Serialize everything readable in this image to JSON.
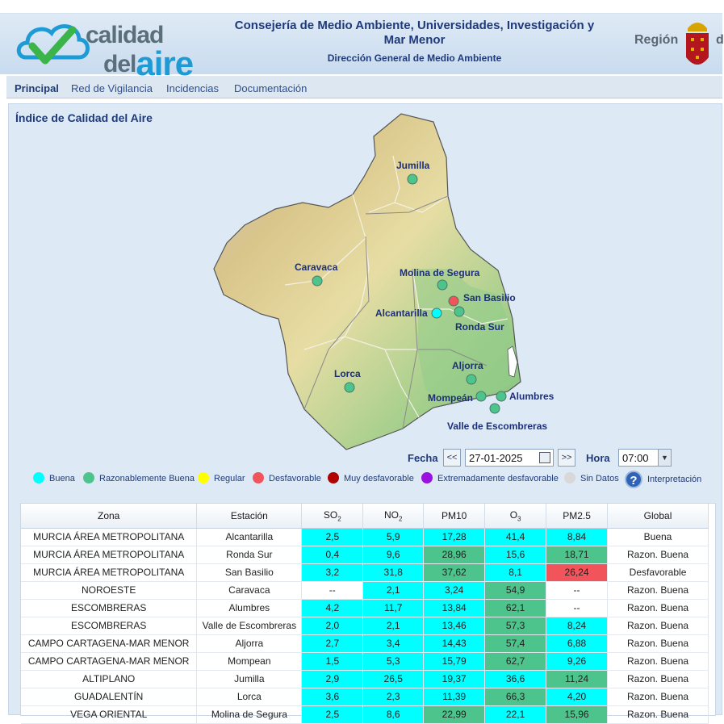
{
  "header": {
    "logo_line1": "calidad",
    "logo_line2_small": "del",
    "logo_line2_big": "aire",
    "title": "Consejería de Medio Ambiente, Universidades, Investigación y Mar Menor",
    "subtitle": "Dirección General de Medio Ambiente",
    "region_label": "Región",
    "region_cut": "d"
  },
  "nav": {
    "items": [
      {
        "label": "Principal",
        "active": true
      },
      {
        "label": "Red de Vigilancia",
        "active": false
      },
      {
        "label": "Incidencias",
        "active": false
      },
      {
        "label": "Documentación",
        "active": false
      }
    ]
  },
  "main": {
    "title": "Índice de Calidad del Aire",
    "stations": [
      {
        "name": "Jumilla",
        "status": "razon"
      },
      {
        "name": "Caravaca",
        "status": "razon"
      },
      {
        "name": "Molina de Segura",
        "status": "razon"
      },
      {
        "name": "San Basilio",
        "status": "desf"
      },
      {
        "name": "Alcantarilla",
        "status": "buena"
      },
      {
        "name": "Ronda Sur",
        "status": "razon"
      },
      {
        "name": "Lorca",
        "status": "razon"
      },
      {
        "name": "Aljorra",
        "status": "razon"
      },
      {
        "name": "Mompeán",
        "status": "razon"
      },
      {
        "name": "Alumbres",
        "status": "razon"
      },
      {
        "name": "Valle de Escombreras",
        "status": "razon"
      }
    ]
  },
  "controls": {
    "fecha_label": "Fecha",
    "prev": "<<",
    "next": ">>",
    "date_value": "27-01-2025",
    "hora_label": "Hora",
    "hora_value": "07:00"
  },
  "legend": [
    {
      "label": "Buena",
      "color": "#00ffff"
    },
    {
      "label": "Razonablemente Buena",
      "color": "#4cc48c"
    },
    {
      "label": "Regular",
      "color": "#ffff00"
    },
    {
      "label": "Desfavorable",
      "color": "#f2545b"
    },
    {
      "label": "Muy desfavorable",
      "color": "#b00000"
    },
    {
      "label": "Extremadamente desfavorable",
      "color": "#9b11e0"
    },
    {
      "label": "Sin Datos",
      "color": "#d8d8d8"
    }
  ],
  "help_label": "Interpretación",
  "colors": {
    "buena": "#00ffff",
    "razon": "#4cc48c",
    "desf": "#f2545b",
    "none": "#ffffff"
  },
  "table": {
    "headers": {
      "zona": "Zona",
      "estacion": "Estación",
      "so2": "SO",
      "so2_sub": "2",
      "no2": "NO",
      "no2_sub": "2",
      "pm10": "PM10",
      "o3": "O",
      "o3_sub": "3",
      "pm25": "PM2.5",
      "global": "Global"
    },
    "rows": [
      {
        "zona": "MURCIA ÁREA METROPOLITANA",
        "estacion": "Alcantarilla",
        "so2": [
          "2,5",
          "buena"
        ],
        "no2": [
          "5,9",
          "buena"
        ],
        "pm10": [
          "17,28",
          "buena"
        ],
        "o3": [
          "41,4",
          "buena"
        ],
        "pm25": [
          "8,84",
          "buena"
        ],
        "global": "Buena"
      },
      {
        "zona": "MURCIA ÁREA METROPOLITANA",
        "estacion": "Ronda Sur",
        "so2": [
          "0,4",
          "buena"
        ],
        "no2": [
          "9,6",
          "buena"
        ],
        "pm10": [
          "28,96",
          "razon"
        ],
        "o3": [
          "15,6",
          "buena"
        ],
        "pm25": [
          "18,71",
          "razon"
        ],
        "global": "Razon. Buena"
      },
      {
        "zona": "MURCIA ÁREA METROPOLITANA",
        "estacion": "San Basilio",
        "so2": [
          "3,2",
          "buena"
        ],
        "no2": [
          "31,8",
          "buena"
        ],
        "pm10": [
          "37,62",
          "razon"
        ],
        "o3": [
          "8,1",
          "buena"
        ],
        "pm25": [
          "26,24",
          "desf"
        ],
        "global": "Desfavorable"
      },
      {
        "zona": "NOROESTE",
        "estacion": "Caravaca",
        "so2": [
          "--",
          "none"
        ],
        "no2": [
          "2,1",
          "buena"
        ],
        "pm10": [
          "3,24",
          "buena"
        ],
        "o3": [
          "54,9",
          "razon"
        ],
        "pm25": [
          "--",
          "none"
        ],
        "global": "Razon. Buena"
      },
      {
        "zona": "ESCOMBRERAS",
        "estacion": "Alumbres",
        "so2": [
          "4,2",
          "buena"
        ],
        "no2": [
          "11,7",
          "buena"
        ],
        "pm10": [
          "13,84",
          "buena"
        ],
        "o3": [
          "62,1",
          "razon"
        ],
        "pm25": [
          "--",
          "none"
        ],
        "global": "Razon. Buena"
      },
      {
        "zona": "ESCOMBRERAS",
        "estacion": "Valle de Escombreras",
        "so2": [
          "2,0",
          "buena"
        ],
        "no2": [
          "2,1",
          "buena"
        ],
        "pm10": [
          "13,46",
          "buena"
        ],
        "o3": [
          "57,3",
          "razon"
        ],
        "pm25": [
          "8,24",
          "buena"
        ],
        "global": "Razon. Buena"
      },
      {
        "zona": "CAMPO CARTAGENA-MAR MENOR",
        "estacion": "Aljorra",
        "so2": [
          "2,7",
          "buena"
        ],
        "no2": [
          "3,4",
          "buena"
        ],
        "pm10": [
          "14,43",
          "buena"
        ],
        "o3": [
          "57,4",
          "razon"
        ],
        "pm25": [
          "6,88",
          "buena"
        ],
        "global": "Razon. Buena"
      },
      {
        "zona": "CAMPO CARTAGENA-MAR MENOR",
        "estacion": "Mompean",
        "so2": [
          "1,5",
          "buena"
        ],
        "no2": [
          "5,3",
          "buena"
        ],
        "pm10": [
          "15,79",
          "buena"
        ],
        "o3": [
          "62,7",
          "razon"
        ],
        "pm25": [
          "9,26",
          "buena"
        ],
        "global": "Razon. Buena"
      },
      {
        "zona": "ALTIPLANO",
        "estacion": "Jumilla",
        "so2": [
          "2,9",
          "buena"
        ],
        "no2": [
          "26,5",
          "buena"
        ],
        "pm10": [
          "19,37",
          "buena"
        ],
        "o3": [
          "36,6",
          "buena"
        ],
        "pm25": [
          "11,24",
          "razon"
        ],
        "global": "Razon. Buena"
      },
      {
        "zona": "GUADALENTÍN",
        "estacion": "Lorca",
        "so2": [
          "3,6",
          "buena"
        ],
        "no2": [
          "2,3",
          "buena"
        ],
        "pm10": [
          "11,39",
          "buena"
        ],
        "o3": [
          "66,3",
          "razon"
        ],
        "pm25": [
          "4,20",
          "buena"
        ],
        "global": "Razon. Buena"
      },
      {
        "zona": "VEGA ORIENTAL",
        "estacion": "Molina de Segura",
        "so2": [
          "2,5",
          "buena"
        ],
        "no2": [
          "8,6",
          "buena"
        ],
        "pm10": [
          "22,99",
          "razon"
        ],
        "o3": [
          "22,1",
          "buena"
        ],
        "pm25": [
          "15,96",
          "razon"
        ],
        "global": "Razon. Buena"
      }
    ]
  }
}
